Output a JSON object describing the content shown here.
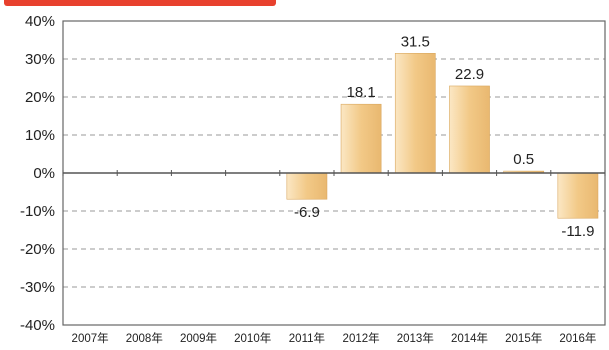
{
  "chart_data": {
    "type": "bar",
    "title": "",
    "xlabel": "",
    "ylabel": "",
    "categories": [
      "2007年",
      "2008年",
      "2009年",
      "2010年",
      "2011年",
      "2012年",
      "2013年",
      "2014年",
      "2015年",
      "2016年"
    ],
    "values": [
      null,
      null,
      null,
      null,
      -6.9,
      18.1,
      31.5,
      22.9,
      0.5,
      -11.9
    ],
    "value_labels": [
      "",
      "",
      "",
      "",
      "-6.9",
      "18.1",
      "31.5",
      "22.9",
      "0.5",
      "-11.9"
    ],
    "ylim": [
      -40,
      40
    ],
    "yticks": [
      40,
      30,
      20,
      10,
      0,
      -10,
      -20,
      -30,
      -40
    ],
    "ytick_labels": [
      "40%",
      "30%",
      "20%",
      "10%",
      "0%",
      "-10%",
      "-20%",
      "-30%",
      "-40%"
    ],
    "grid": true,
    "bar_color": "#f2c987",
    "bar_color_light": "#fbe7c4"
  }
}
